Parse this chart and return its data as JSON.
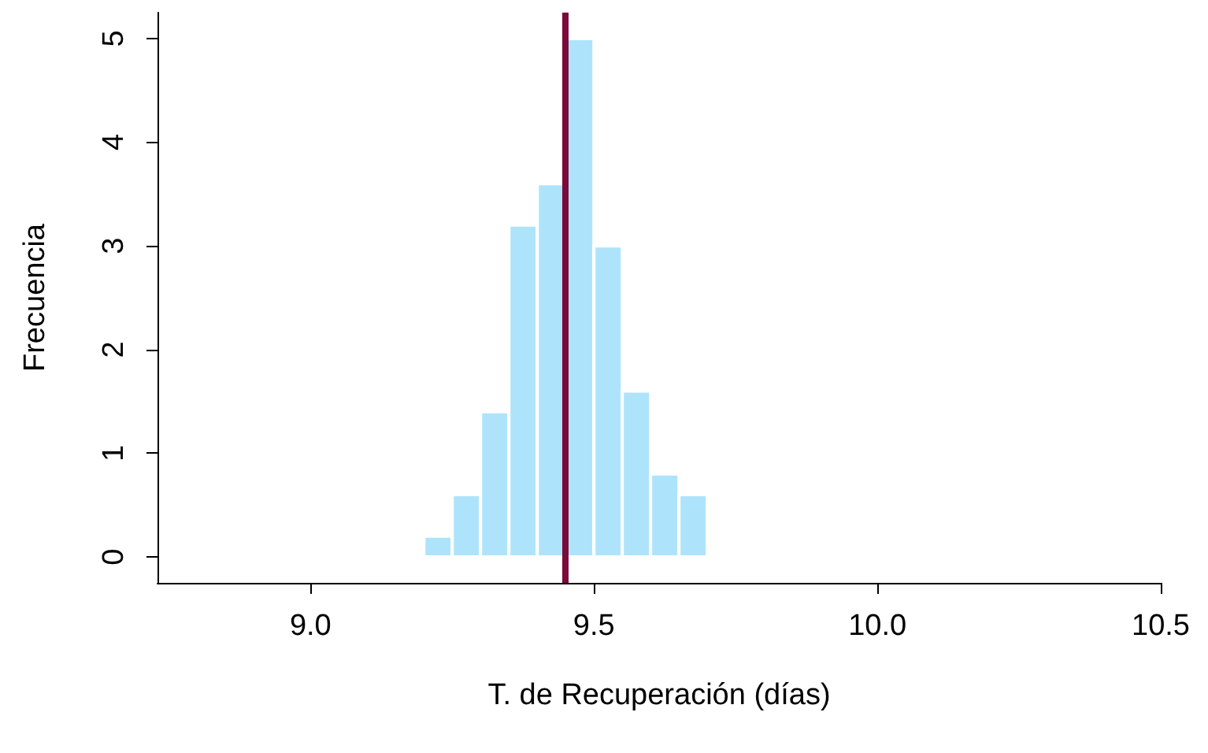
{
  "chart_data": {
    "type": "histogram",
    "xlabel": "T. de Recuperación (días)",
    "ylabel": "Frecuencia",
    "bins": [
      9.2,
      9.25,
      9.3,
      9.35,
      9.4,
      9.45,
      9.5,
      9.55,
      9.6,
      9.65,
      9.7
    ],
    "values": [
      0.2,
      0.6,
      1.4,
      3.2,
      3.6,
      5.0,
      3.0,
      1.6,
      0.8,
      0.6
    ],
    "color": "#aee4fb",
    "xlim": [
      8.73,
      10.5
    ],
    "ylim": [
      -0.25,
      5.25
    ],
    "xticks": [
      {
        "value": 9,
        "label": "9.0"
      },
      9.5,
      {
        "value": 10,
        "label": "10.0"
      },
      10.5
    ],
    "yticks": [
      0,
      1,
      2,
      3,
      4,
      5
    ],
    "grid": false,
    "ref_lines": [
      {
        "axis": "x",
        "value": 9.45,
        "color": "#7a0a3a"
      }
    ]
  }
}
